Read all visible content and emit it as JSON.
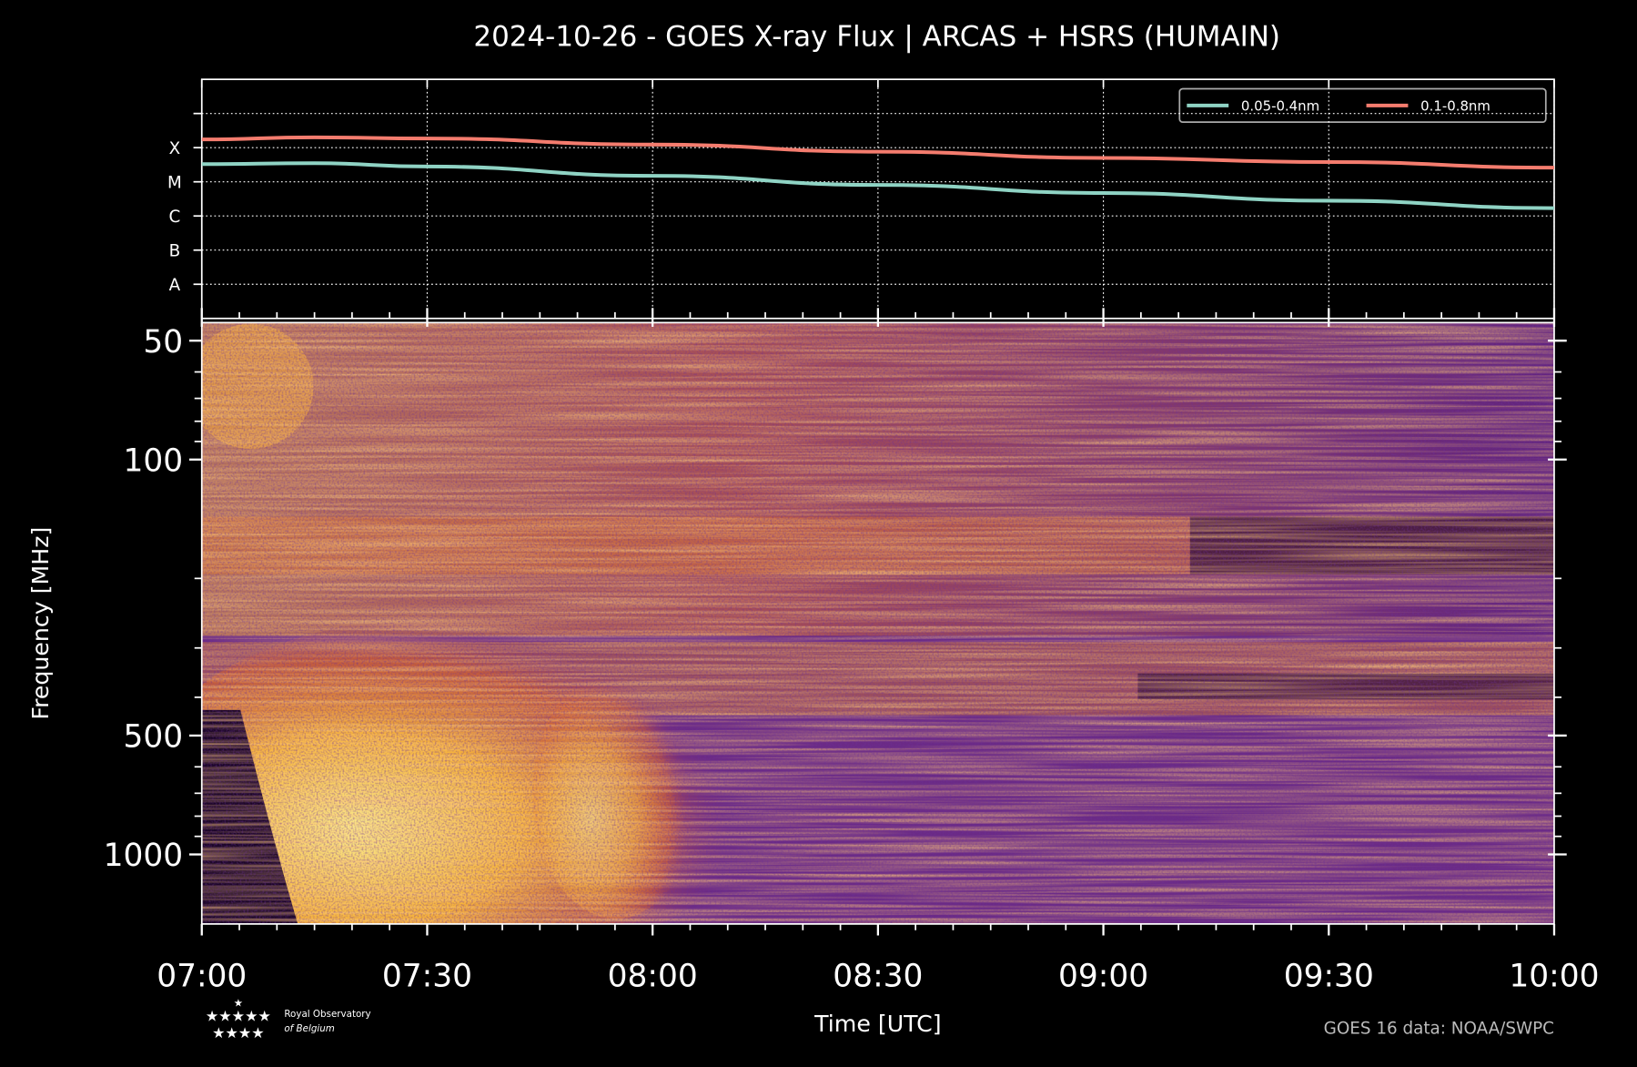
{
  "chart_data": [
    {
      "type": "line",
      "title": "2024-10-26 - GOES X-ray Flux | ARCAS + HSRS (HUMAIN)",
      "x": [
        "07:00",
        "07:15",
        "07:30",
        "08:00",
        "08:30",
        "09:00",
        "09:30",
        "10:00"
      ],
      "xlim": [
        "07:00",
        "10:00"
      ],
      "log_y": true,
      "grid": true,
      "legend": "upper right",
      "ylim": [
        1e-09,
        0.01
      ],
      "yticks": [
        {
          "value": 1e-08,
          "label": "A"
        },
        {
          "value": 1e-07,
          "label": "B"
        },
        {
          "value": 1e-06,
          "label": "C"
        },
        {
          "value": 1e-05,
          "label": "M"
        },
        {
          "value": 0.0001,
          "label": "X"
        }
      ],
      "yticks_unlabeled": [
        0.001
      ],
      "series": [
        {
          "name": "0.05-0.4nm",
          "color": "#8fd3c4",
          "values": [
            3.3e-05,
            3.5e-05,
            2.8e-05,
            1.5e-05,
            8.1e-06,
            4.7e-06,
            2.8e-06,
            1.7e-06
          ]
        },
        {
          "name": "0.1-0.8nm",
          "color": "#f47c6e",
          "values": [
            0.000174,
            0.0002,
            0.000186,
            0.000123,
            7.6e-05,
            5e-05,
            3.8e-05,
            2.6e-05
          ]
        }
      ]
    },
    {
      "type": "spectrogram",
      "ylabel": "Frequency [MHz]",
      "xlabel": "Time [UTC]",
      "log_y": true,
      "ylim": [
        45,
        1500
      ],
      "yticks": [
        50,
        100,
        500,
        1000
      ],
      "minor_yticks": [
        60,
        70,
        80,
        90,
        200,
        300,
        400,
        600,
        700,
        800,
        900
      ],
      "xlim": [
        "07:00",
        "10:00"
      ],
      "xticks": [
        "07:00",
        "07:30",
        "08:00",
        "08:30",
        "09:00",
        "09:30",
        "10:00"
      ]
    }
  ],
  "footer": {
    "credit": "GOES 16 data: NOAA/SWPC",
    "logo_line1": "Royal Observatory",
    "logo_line2": "of Belgium"
  }
}
